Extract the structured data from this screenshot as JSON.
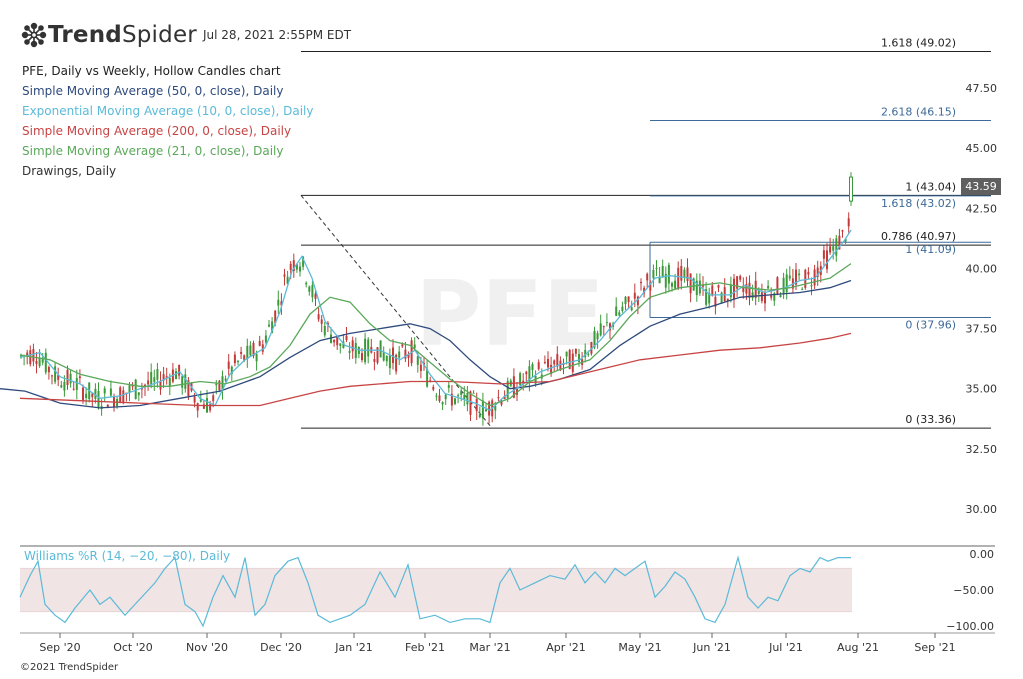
{
  "brand": {
    "name_bold": "Trend",
    "name_light": "Spider",
    "timestamp": "Jul 28, 2021 2:55PM EDT"
  },
  "legend": [
    {
      "text": "PFE, Daily vs Weekly, Hollow Candles chart",
      "color": "#222222"
    },
    {
      "text": "Simple Moving Average (50, 0, close), Daily",
      "color": "#2e4a7d"
    },
    {
      "text": "Exponential Moving Average (10, 0, close), Daily",
      "color": "#5bbad8"
    },
    {
      "text": "Simple Moving Average (200, 0, close), Daily",
      "color": "#c84444"
    },
    {
      "text": "Simple Moving Average (21, 0, close), Daily",
      "color": "#5aa85a"
    },
    {
      "text": "Drawings, Daily",
      "color": "#333333"
    }
  ],
  "watermark": "PFE",
  "current_price": "43.59",
  "copyright": "©2021 TrendSpider",
  "williams_label": "Williams %R (14, −20, −80), Daily",
  "chart_data": {
    "type": "line",
    "symbol": "PFE",
    "x_axis_labels": [
      "Sep '20",
      "Oct '20",
      "Nov '20",
      "Dec '20",
      "Jan '21",
      "Feb '21",
      "Mar '21",
      "Apr '21",
      "May '21",
      "Jun '21",
      "Jul '21",
      "Aug '21",
      "Sep '21"
    ],
    "y_axis": {
      "ticks": [
        "30.00",
        "32.50",
        "35.00",
        "37.50",
        "40.00",
        "42.50",
        "45.00",
        "47.50"
      ],
      "ylim": [
        28.5,
        49.5
      ]
    },
    "fib_levels": [
      {
        "label": "1.618 (49.02)",
        "value": 49.02,
        "color": "#222222",
        "from": "Dec '20",
        "to": "Sep '21"
      },
      {
        "label": "2.618 (46.15)",
        "value": 46.15,
        "color": "#3d6a9a",
        "from": "May '21",
        "to": "Sep '21"
      },
      {
        "label": "1 (43.04)",
        "value": 43.04,
        "color": "#222222",
        "from": "Dec '20",
        "to": "Sep '21"
      },
      {
        "label": "1.618 (43.02)",
        "value": 43.02,
        "color": "#3d6a9a",
        "from": "May '21",
        "to": "Sep '21"
      },
      {
        "label": "0.786 (40.97)",
        "value": 40.97,
        "color": "#222222",
        "from": "Dec '20",
        "to": "Sep '21"
      },
      {
        "label": "1 (41.09)",
        "value": 41.09,
        "color": "#3d6a9a",
        "from": "May '21",
        "to": "Sep '21"
      },
      {
        "label": "0 (37.96)",
        "value": 37.96,
        "color": "#3d6a9a",
        "from": "May '21",
        "to": "Sep '21"
      },
      {
        "label": "0 (33.36)",
        "value": 33.36,
        "color": "#222222",
        "from": "Dec '20",
        "to": "Sep '21"
      }
    ],
    "series": [
      {
        "name": "Simple Moving Average (50, 0, close), Daily",
        "color": "#2e4a7d",
        "points": [
          [
            0,
            35.0
          ],
          [
            25,
            34.9
          ],
          [
            60,
            34.4
          ],
          [
            100,
            34.2
          ],
          [
            140,
            34.3
          ],
          [
            180,
            34.6
          ],
          [
            220,
            34.9
          ],
          [
            260,
            35.5
          ],
          [
            290,
            36.3
          ],
          [
            320,
            37.0
          ],
          [
            350,
            37.3
          ],
          [
            380,
            37.5
          ],
          [
            410,
            37.7
          ],
          [
            430,
            37.5
          ],
          [
            450,
            37.0
          ],
          [
            470,
            36.2
          ],
          [
            490,
            35.5
          ],
          [
            510,
            35.0
          ],
          [
            530,
            35.1
          ],
          [
            560,
            35.4
          ],
          [
            590,
            35.8
          ],
          [
            620,
            36.8
          ],
          [
            650,
            37.6
          ],
          [
            680,
            38.1
          ],
          [
            710,
            38.4
          ],
          [
            740,
            38.8
          ],
          [
            770,
            38.9
          ],
          [
            800,
            39.0
          ],
          [
            830,
            39.2
          ],
          [
            851,
            39.5
          ]
        ]
      },
      {
        "name": "Exponential Moving Average (10, 0, close), Daily",
        "color": "#5bbad8",
        "points": [
          [
            20,
            36.3
          ],
          [
            40,
            36.5
          ],
          [
            60,
            35.5
          ],
          [
            80,
            35.2
          ],
          [
            100,
            34.6
          ],
          [
            120,
            34.7
          ],
          [
            140,
            35.0
          ],
          [
            160,
            35.3
          ],
          [
            180,
            35.7
          ],
          [
            200,
            34.6
          ],
          [
            215,
            34.3
          ],
          [
            230,
            35.6
          ],
          [
            245,
            36.2
          ],
          [
            265,
            36.7
          ],
          [
            280,
            38.2
          ],
          [
            292,
            39.9
          ],
          [
            302,
            40.5
          ],
          [
            312,
            39.6
          ],
          [
            325,
            37.8
          ],
          [
            345,
            36.8
          ],
          [
            360,
            36.6
          ],
          [
            380,
            36.6
          ],
          [
            400,
            36.2
          ],
          [
            415,
            36.6
          ],
          [
            430,
            35.6
          ],
          [
            445,
            34.8
          ],
          [
            460,
            34.6
          ],
          [
            475,
            34.4
          ],
          [
            490,
            34.1
          ],
          [
            505,
            34.7
          ],
          [
            520,
            35.1
          ],
          [
            540,
            35.7
          ],
          [
            560,
            36.0
          ],
          [
            580,
            36.2
          ],
          [
            600,
            37.0
          ],
          [
            620,
            38.0
          ],
          [
            640,
            38.8
          ],
          [
            655,
            39.6
          ],
          [
            670,
            39.7
          ],
          [
            690,
            39.6
          ],
          [
            710,
            38.9
          ],
          [
            730,
            38.9
          ],
          [
            745,
            39.3
          ],
          [
            765,
            39.0
          ],
          [
            785,
            39.2
          ],
          [
            800,
            39.5
          ],
          [
            815,
            39.6
          ],
          [
            830,
            40.4
          ],
          [
            845,
            41.2
          ],
          [
            851,
            41.6
          ]
        ]
      },
      {
        "name": "Simple Moving Average (200, 0, close), Daily",
        "color": "#c84444",
        "points": [
          [
            20,
            34.6
          ],
          [
            80,
            34.5
          ],
          [
            140,
            34.4
          ],
          [
            200,
            34.3
          ],
          [
            260,
            34.3
          ],
          [
            290,
            34.6
          ],
          [
            320,
            34.9
          ],
          [
            350,
            35.1
          ],
          [
            380,
            35.2
          ],
          [
            410,
            35.3
          ],
          [
            450,
            35.3
          ],
          [
            500,
            35.2
          ],
          [
            550,
            35.3
          ],
          [
            580,
            35.6
          ],
          [
            610,
            35.9
          ],
          [
            640,
            36.2
          ],
          [
            680,
            36.4
          ],
          [
            720,
            36.6
          ],
          [
            760,
            36.7
          ],
          [
            800,
            36.9
          ],
          [
            830,
            37.1
          ],
          [
            851,
            37.3
          ]
        ]
      },
      {
        "name": "Simple Moving Average (21, 0, close), Daily",
        "color": "#5aa85a",
        "points": [
          [
            20,
            36.4
          ],
          [
            50,
            36.2
          ],
          [
            80,
            35.6
          ],
          [
            110,
            35.3
          ],
          [
            140,
            35.1
          ],
          [
            170,
            35.1
          ],
          [
            200,
            35.3
          ],
          [
            225,
            35.2
          ],
          [
            250,
            35.5
          ],
          [
            270,
            35.9
          ],
          [
            290,
            36.8
          ],
          [
            310,
            38.1
          ],
          [
            330,
            38.8
          ],
          [
            350,
            38.6
          ],
          [
            370,
            37.7
          ],
          [
            390,
            37.0
          ],
          [
            410,
            36.8
          ],
          [
            430,
            36.1
          ],
          [
            450,
            35.4
          ],
          [
            470,
            34.8
          ],
          [
            490,
            34.3
          ],
          [
            510,
            34.6
          ],
          [
            530,
            35.3
          ],
          [
            560,
            35.8
          ],
          [
            590,
            36.2
          ],
          [
            610,
            37.0
          ],
          [
            630,
            38.0
          ],
          [
            650,
            38.8
          ],
          [
            680,
            39.2
          ],
          [
            700,
            39.3
          ],
          [
            720,
            39.4
          ],
          [
            745,
            39.2
          ],
          [
            770,
            39.1
          ],
          [
            790,
            39.2
          ],
          [
            810,
            39.4
          ],
          [
            830,
            39.6
          ],
          [
            851,
            40.2
          ]
        ]
      }
    ],
    "williams_r": {
      "name": "Williams %R (14, −20, −80), Daily",
      "color": "#5bbad8",
      "y_axis": {
        "ticks": [
          "0.00",
          "−50.00",
          "−100.00"
        ],
        "ylim": [
          -100,
          0
        ]
      },
      "band": [
        -80,
        -20
      ],
      "points": [
        [
          20,
          -60
        ],
        [
          30,
          -30
        ],
        [
          38,
          -10
        ],
        [
          45,
          -70
        ],
        [
          55,
          -85
        ],
        [
          65,
          -95
        ],
        [
          75,
          -75
        ],
        [
          90,
          -50
        ],
        [
          100,
          -70
        ],
        [
          110,
          -60
        ],
        [
          125,
          -85
        ],
        [
          135,
          -70
        ],
        [
          145,
          -55
        ],
        [
          155,
          -40
        ],
        [
          165,
          -20
        ],
        [
          175,
          -5
        ],
        [
          185,
          -70
        ],
        [
          195,
          -80
        ],
        [
          203,
          -100
        ],
        [
          213,
          -60
        ],
        [
          223,
          -30
        ],
        [
          235,
          -60
        ],
        [
          245,
          -5
        ],
        [
          255,
          -85
        ],
        [
          265,
          -70
        ],
        [
          275,
          -30
        ],
        [
          288,
          -10
        ],
        [
          298,
          -5
        ],
        [
          308,
          -40
        ],
        [
          318,
          -85
        ],
        [
          330,
          -95
        ],
        [
          350,
          -85
        ],
        [
          365,
          -70
        ],
        [
          380,
          -25
        ],
        [
          395,
          -60
        ],
        [
          408,
          -15
        ],
        [
          420,
          -90
        ],
        [
          435,
          -85
        ],
        [
          450,
          -95
        ],
        [
          465,
          -90
        ],
        [
          480,
          -90
        ],
        [
          490,
          -95
        ],
        [
          500,
          -40
        ],
        [
          510,
          -20
        ],
        [
          520,
          -50
        ],
        [
          535,
          -40
        ],
        [
          550,
          -30
        ],
        [
          565,
          -35
        ],
        [
          575,
          -15
        ],
        [
          585,
          -40
        ],
        [
          595,
          -25
        ],
        [
          605,
          -40
        ],
        [
          615,
          -20
        ],
        [
          625,
          -30
        ],
        [
          635,
          -20
        ],
        [
          645,
          -10
        ],
        [
          655,
          -60
        ],
        [
          665,
          -45
        ],
        [
          675,
          -25
        ],
        [
          685,
          -35
        ],
        [
          695,
          -60
        ],
        [
          705,
          -90
        ],
        [
          715,
          -95
        ],
        [
          725,
          -70
        ],
        [
          738,
          -5
        ],
        [
          748,
          -60
        ],
        [
          758,
          -75
        ],
        [
          768,
          -60
        ],
        [
          778,
          -65
        ],
        [
          790,
          -30
        ],
        [
          800,
          -20
        ],
        [
          810,
          -25
        ],
        [
          820,
          -5
        ],
        [
          828,
          -10
        ],
        [
          838,
          -5
        ],
        [
          851,
          -5
        ]
      ]
    }
  }
}
